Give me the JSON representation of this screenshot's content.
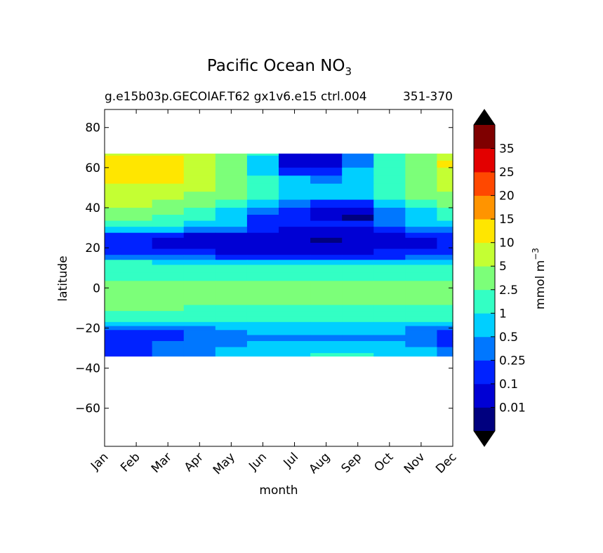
{
  "chart_data": {
    "type": "heatmap",
    "title": "Pacific Ocean NO",
    "title_subscript": "3",
    "subtitle_left": "g.e15b03p.GECOIAF.T62 gx1v6.e15 ctrl.004",
    "subtitle_right": "351-370",
    "xlabel": "month",
    "ylabel": "latitude",
    "x_ticks": [
      "Jan",
      "Feb",
      "Mar",
      "Apr",
      "May",
      "Jun",
      "Jul",
      "Aug",
      "Sep",
      "Oct",
      "Nov",
      "Dec"
    ],
    "y_ticks": [
      {
        "value": 80,
        "label": "80"
      },
      {
        "value": 60,
        "label": "60"
      },
      {
        "value": 40,
        "label": "40"
      },
      {
        "value": 20,
        "label": "20"
      },
      {
        "value": 0,
        "label": "0"
      },
      {
        "value": -20,
        "label": "−20"
      },
      {
        "value": -40,
        "label": "−40"
      },
      {
        "value": -60,
        "label": "−60"
      }
    ],
    "xlim": [
      1,
      12
    ],
    "ylim": [
      -79,
      89
    ],
    "data_lat_range": [
      -34,
      67
    ],
    "grid": false,
    "colorbar": {
      "label_main": "mmol m",
      "label_sup": "−3",
      "levels": [
        "0.01",
        "0.1",
        "0.25",
        "0.5",
        "1",
        "2.5",
        "5",
        "10",
        "15",
        "20",
        "25",
        "35"
      ],
      "colors": [
        "#00007f",
        "#0000d4",
        "#0022ff",
        "#0077ff",
        "#00cfff",
        "#33ffc4",
        "#7cff79",
        "#c4ff33",
        "#ffe600",
        "#ff9400",
        "#ff4800",
        "#e30000",
        "#7f0000"
      ],
      "extend": "both",
      "extend_colors": [
        "#000000",
        "#000000"
      ]
    },
    "rows": [
      {
        "lat": 67,
        "values": [
          5,
          5,
          5,
          5,
          2.5,
          1,
          0.05,
          0.05,
          0.3,
          1,
          2.5,
          5
        ]
      },
      {
        "lat": 65,
        "values": [
          10,
          10,
          10,
          5,
          2.5,
          0.5,
          0.05,
          0.05,
          0.3,
          1,
          2.5,
          5
        ]
      },
      {
        "lat": 62,
        "values": [
          10,
          10,
          10,
          5,
          2.5,
          0.5,
          0.05,
          0.05,
          0.3,
          1,
          2.5,
          10
        ]
      },
      {
        "lat": 58,
        "values": [
          10,
          10,
          10,
          5,
          2.5,
          0.5,
          0.2,
          0.2,
          0.5,
          1,
          2.5,
          5
        ]
      },
      {
        "lat": 54,
        "values": [
          10,
          10,
          10,
          5,
          2.5,
          1,
          0.5,
          0.3,
          0.5,
          1,
          2.5,
          5
        ]
      },
      {
        "lat": 50,
        "values": [
          5,
          5,
          5,
          5,
          2.5,
          1,
          0.5,
          0.5,
          0.5,
          1,
          2.5,
          5
        ]
      },
      {
        "lat": 46,
        "values": [
          5,
          5,
          5,
          2.5,
          2.5,
          1,
          0.5,
          0.5,
          0.5,
          1,
          2.5,
          2.5
        ]
      },
      {
        "lat": 42,
        "values": [
          5,
          5,
          2.5,
          2.5,
          1,
          0.5,
          0.25,
          0.15,
          0.15,
          0.5,
          1,
          2.5
        ]
      },
      {
        "lat": 38,
        "values": [
          2.5,
          2.5,
          2.5,
          1,
          0.5,
          0.25,
          0.1,
          0.05,
          0.05,
          0.25,
          0.5,
          1
        ]
      },
      {
        "lat": 35,
        "values": [
          2.5,
          2.5,
          1,
          1,
          0.5,
          0.2,
          0.1,
          0.05,
          0.005,
          0.25,
          0.5,
          1
        ]
      },
      {
        "lat": 32,
        "values": [
          1,
          1,
          1,
          0.5,
          0.5,
          0.2,
          0.1,
          0.1,
          0.1,
          0.25,
          0.5,
          0.5
        ]
      },
      {
        "lat": 29,
        "values": [
          0.5,
          0.5,
          0.5,
          0.25,
          0.25,
          0.1,
          0.05,
          0.05,
          0.05,
          0.1,
          0.25,
          0.25
        ]
      },
      {
        "lat": 26,
        "values": [
          0.2,
          0.2,
          0.1,
          0.05,
          0.05,
          0.05,
          0.03,
          0.02,
          0.03,
          0.05,
          0.1,
          0.2
        ]
      },
      {
        "lat": 24,
        "values": [
          0.1,
          0.1,
          0.05,
          0.05,
          0.05,
          0.03,
          0.02,
          0.005,
          0.02,
          0.05,
          0.05,
          0.1
        ]
      },
      {
        "lat": 21,
        "values": [
          0.1,
          0.1,
          0.05,
          0.05,
          0.05,
          0.03,
          0.02,
          0.02,
          0.03,
          0.05,
          0.05,
          0.1
        ]
      },
      {
        "lat": 18,
        "values": [
          0.2,
          0.2,
          0.1,
          0.1,
          0.05,
          0.05,
          0.05,
          0.05,
          0.05,
          0.1,
          0.1,
          0.2
        ]
      },
      {
        "lat": 15,
        "values": [
          0.3,
          0.3,
          0.3,
          0.25,
          0.2,
          0.15,
          0.15,
          0.15,
          0.15,
          0.2,
          0.25,
          0.3
        ]
      },
      {
        "lat": 13,
        "values": [
          1,
          1,
          0.5,
          0.5,
          0.5,
          0.5,
          0.5,
          0.5,
          0.5,
          0.5,
          0.5,
          0.5
        ]
      },
      {
        "lat": 10,
        "values": [
          2,
          2,
          2,
          2,
          1.5,
          1.5,
          1.5,
          1.5,
          1.5,
          1.5,
          1.5,
          2
        ]
      },
      {
        "lat": 5,
        "values": [
          2,
          2,
          2,
          2,
          2,
          2,
          2,
          2,
          2,
          2,
          2,
          2
        ]
      },
      {
        "lat": 2,
        "values": [
          3,
          3,
          3,
          3,
          3,
          3,
          3,
          3,
          3,
          3,
          3,
          3
        ]
      },
      {
        "lat": -3,
        "values": [
          4,
          4,
          4,
          4,
          4,
          4,
          4,
          4,
          4,
          4,
          4,
          4
        ]
      },
      {
        "lat": -7,
        "values": [
          3,
          3,
          3,
          3,
          3,
          3,
          3,
          3,
          3,
          3,
          3,
          3
        ]
      },
      {
        "lat": -10,
        "values": [
          2.5,
          2.5,
          2.5,
          2,
          2,
          2,
          2,
          2,
          2,
          2,
          2,
          2
        ]
      },
      {
        "lat": -13,
        "values": [
          2,
          2,
          1.5,
          1.5,
          1.5,
          1.5,
          1.5,
          1.5,
          1.5,
          1.5,
          1.5,
          1.5
        ]
      },
      {
        "lat": -16,
        "values": [
          1,
          1,
          1,
          1,
          1,
          1,
          1,
          1,
          1,
          1,
          1,
          1
        ]
      },
      {
        "lat": -18,
        "values": [
          0.5,
          0.5,
          0.5,
          0.5,
          0.5,
          0.6,
          0.7,
          0.7,
          0.7,
          0.6,
          0.5,
          0.5
        ]
      },
      {
        "lat": -20,
        "values": [
          0.3,
          0.3,
          0.3,
          0.4,
          0.5,
          0.5,
          0.5,
          0.5,
          0.5,
          0.5,
          0.4,
          0.3
        ]
      },
      {
        "lat": -22,
        "values": [
          0.2,
          0.2,
          0.2,
          0.3,
          0.4,
          0.5,
          0.5,
          0.5,
          0.5,
          0.5,
          0.3,
          0.2
        ]
      },
      {
        "lat": -25,
        "values": [
          0.2,
          0.2,
          0.2,
          0.3,
          0.4,
          0.4,
          0.4,
          0.4,
          0.4,
          0.4,
          0.3,
          0.2
        ]
      },
      {
        "lat": -28,
        "values": [
          0.2,
          0.2,
          0.25,
          0.3,
          0.4,
          0.5,
          0.6,
          0.7,
          0.7,
          0.6,
          0.4,
          0.2
        ]
      },
      {
        "lat": -31,
        "values": [
          0.2,
          0.2,
          0.3,
          0.4,
          0.5,
          0.6,
          0.7,
          0.9,
          0.9,
          0.7,
          0.5,
          0.3
        ]
      },
      {
        "lat": -34,
        "values": [
          0.2,
          0.2,
          0.3,
          0.4,
          0.5,
          0.6,
          0.8,
          1.2,
          1.2,
          0.8,
          0.5,
          0.3
        ]
      }
    ]
  }
}
